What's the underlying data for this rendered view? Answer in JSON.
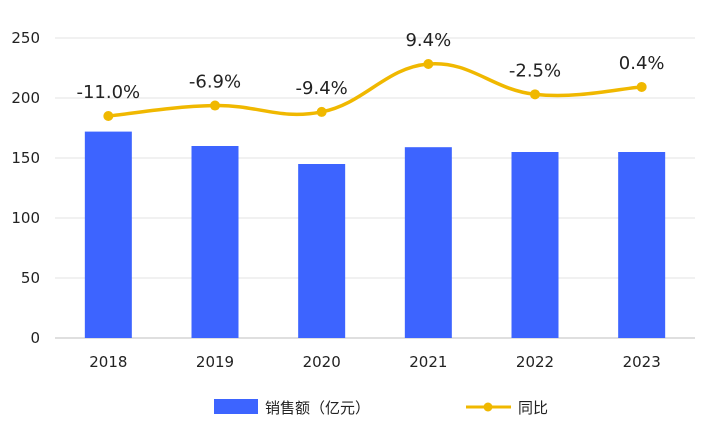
{
  "chart_data": {
    "type": "bar",
    "categories": [
      "2018",
      "2019",
      "2020",
      "2021",
      "2022",
      "2023"
    ],
    "series": [
      {
        "name": "销售额（亿元）",
        "type": "bar",
        "axis": "left",
        "color": "#3D64FF",
        "values": [
          172,
          160,
          145,
          159,
          155,
          155
        ]
      },
      {
        "name": "同比",
        "type": "line",
        "axis": "hidden-right",
        "smooth": true,
        "color": "#F0B800",
        "values": [
          -11.0,
          -6.9,
          -9.4,
          9.4,
          -2.5,
          0.4
        ],
        "data_labels": [
          "-11.0%",
          "-6.9%",
          "-9.4%",
          "9.4%",
          "-2.5%",
          "0.4%"
        ]
      }
    ],
    "y_ticks": [
      "0",
      "50",
      "100",
      "150",
      "200",
      "250"
    ],
    "ylim": [
      0,
      250
    ],
    "grid": true,
    "legend_position": "bottom"
  }
}
